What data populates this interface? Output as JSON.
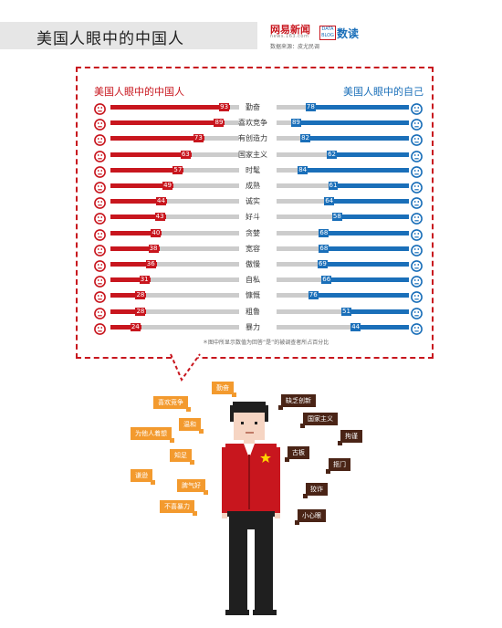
{
  "header": {
    "title": "美国人眼中的中国人",
    "brand_logo": "网易新闻",
    "brand_sub": "news.163.com",
    "source": "数据来源：皮尤民调",
    "badge": "数读",
    "badge_small": "DATA BLOG"
  },
  "chart": {
    "left_title": "美国人眼中的中国人",
    "right_title": "美国人眼中的自己",
    "footnote": "＊图中所显示数值为回答“是”的被调查者所占百分比",
    "colors": {
      "left": "#c8161e",
      "right": "#1a6fb9",
      "track": "#cccccc"
    },
    "rows": [
      {
        "label": "勤奋",
        "cn": 93,
        "us": 78
      },
      {
        "label": "喜欢竞争",
        "cn": 89,
        "us": 89
      },
      {
        "label": "有创造力",
        "cn": 73,
        "us": 82
      },
      {
        "label": "国家主义",
        "cn": 63,
        "us": 62
      },
      {
        "label": "时髦",
        "cn": 57,
        "us": 84
      },
      {
        "label": "成熟",
        "cn": 49,
        "us": 61
      },
      {
        "label": "诚实",
        "cn": 44,
        "us": 64
      },
      {
        "label": "好斗",
        "cn": 43,
        "us": 58
      },
      {
        "label": "贪婪",
        "cn": 40,
        "us": 68
      },
      {
        "label": "宽容",
        "cn": 38,
        "us": 68
      },
      {
        "label": "傲慢",
        "cn": 36,
        "us": 69
      },
      {
        "label": "自私",
        "cn": 31,
        "us": 66
      },
      {
        "label": "慷慨",
        "cn": 28,
        "us": 76
      },
      {
        "label": "粗鲁",
        "cn": 28,
        "us": 51
      },
      {
        "label": "暴力",
        "cn": 24,
        "us": 44
      }
    ]
  },
  "tags": {
    "qinfen": "勤奋",
    "xihuan": "喜欢竞争",
    "wenhe": "温和",
    "weitaren": "为他人着想",
    "zhizu": "知足",
    "qianxun": "谦逊",
    "piqihao": "脾气好",
    "bubaoli": "不喜暴力",
    "quefa": "缺乏创新",
    "guojia": "国家主义",
    "juji": "拘谨",
    "guban": "古板",
    "koumen": "抠门",
    "jiaozha": "狡诈",
    "xiaoxin": "小心眼"
  }
}
